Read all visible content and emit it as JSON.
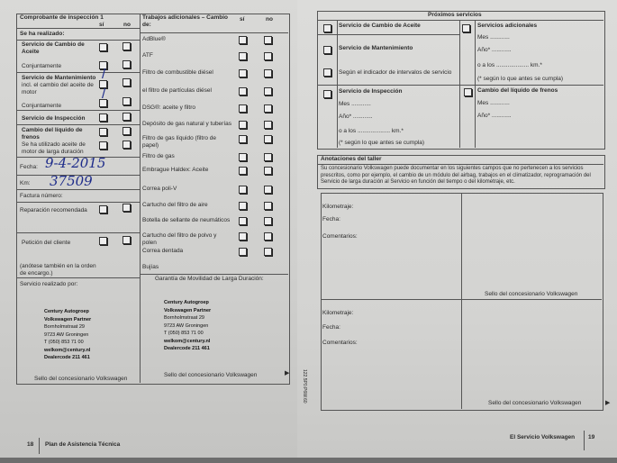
{
  "left": {
    "title": "Comprobante de inspección 1",
    "si": "sí",
    "no": "no",
    "realizado": "Se ha realizado:",
    "items": [
      "Servicio de Cambio de Aceite",
      "Conjuntamente",
      "Servicio de Mantenimiento",
      "incl. el cambio del aceite de motor",
      "Conjuntamente",
      "Servicio de Inspección",
      "Cambio del líquido de frenos",
      "Se ha utilizado aceite de motor de larga duración"
    ],
    "fecha_label": "Fecha:",
    "fecha_value": "9-4-2015",
    "km_label": "Km:",
    "km_value": "37509",
    "factura": "Factura número:",
    "reparacion": "Reparación recomendada",
    "peticion": "Petición del cliente",
    "anotese": "(anótese también en la orden de encargo.)",
    "realizado_por": "Servicio realizado por:",
    "sello": "Sello del concesionario Volkswagen",
    "add_title": "Trabajos adicionales – Cambio de:",
    "add_items": [
      "AdBlue®",
      "ATF",
      "Filtro de combustible diésel",
      "el filtro de partículas diésel",
      "DSG®: aceite y filtro",
      "Depósito de gas natural y tuberías",
      "Filtro de gas líquido (filtro de papel)",
      "Filtro de gas",
      "Embrague Haldex: Aceite",
      "Correa poli-V",
      "Cartucho del filtro de aire",
      "Botella de sellante de neumáticos",
      "Cartucho del filtro de polvo y polen",
      "Correa dentada",
      "Bujías"
    ],
    "garantia": "Garantía de Movilidad de Larga Duración:",
    "stamp": [
      "Century Autogroep",
      "Volkswagen Partner",
      "Bornholmstraat 29",
      "9723 AW Groningen",
      "T (050) 853 71 00",
      "welkom@century.nl",
      "Dealercode 211 461"
    ],
    "page_num": "18",
    "footer": "Plan de Asistencia Técnica"
  },
  "right": {
    "title": "Próximos servicios",
    "cambio_aceite": "Servicio de Cambio de Aceite",
    "mantenimiento": "Servicio de Mantenimiento",
    "segun": "Según el indicador de intervalos de servicio",
    "adicionales": "Servicios adicionales",
    "mes": "Mes ............",
    "ano": "Año* ............",
    "km": "o a los .................... km.*",
    "nota": "(* según lo que antes se cumpla)",
    "inspeccion": "Servicio de Inspección",
    "frenos": "Cambio del líquido de frenos",
    "anot_title": "Anotaciones del taller",
    "anot_text": "Su concesionario Volkswagen puede documentar en los siguientes campos que no pertenecen a los servicios prescritos, como por ejemplo, el cambio de un módulo del airbag, trabajos en el climatizador, reprogramación del Servicio de larga duración al Servicio en función del tiempo o del kilometraje, etc.",
    "kilometraje": "Kilometraje:",
    "fecha": "Fecha:",
    "comentarios": "Comentarios:",
    "sello": "Sello del concesionario Volkswagen",
    "code": "122.5P0.P6W.60",
    "footer": "El Servicio Volkswagen",
    "page_num": "19"
  }
}
